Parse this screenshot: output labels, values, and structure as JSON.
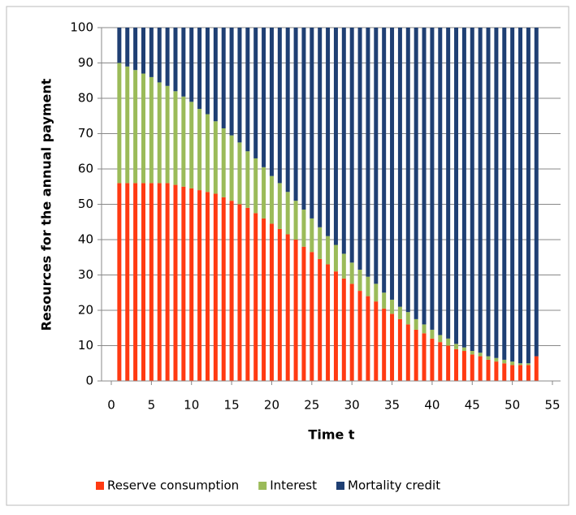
{
  "chart_data": {
    "type": "stacked_bar",
    "x_label": "Time t",
    "y_label": "Resources for the annual payment",
    "x": [
      1,
      2,
      3,
      4,
      5,
      6,
      7,
      8,
      9,
      10,
      11,
      12,
      13,
      14,
      15,
      16,
      17,
      18,
      19,
      20,
      21,
      22,
      23,
      24,
      25,
      26,
      27,
      28,
      29,
      30,
      31,
      32,
      33,
      34,
      35,
      36,
      37,
      38,
      39,
      40,
      41,
      42,
      43,
      44,
      45,
      46,
      47,
      48,
      49,
      50,
      51,
      52,
      53
    ],
    "series": [
      {
        "name": "Reserve consumption",
        "color": "#ff3a12",
        "values": [
          56,
          56,
          56,
          56,
          56,
          56,
          56,
          55.5,
          55,
          54.5,
          54,
          53.5,
          53,
          52,
          51,
          50,
          49,
          47.5,
          46,
          44.5,
          43,
          41.5,
          40,
          38,
          36.5,
          34.5,
          33,
          31,
          29,
          27.5,
          25.5,
          24,
          22.5,
          20.5,
          19,
          17.5,
          16,
          14.5,
          13.5,
          12,
          11,
          10,
          9,
          8.5,
          7.5,
          7,
          6,
          5.5,
          5,
          4.5,
          4.5,
          4.5,
          7
        ]
      },
      {
        "name": "Interest",
        "color": "#9bbb59",
        "values": [
          34,
          33,
          32,
          31,
          30,
          28.5,
          27.5,
          26.5,
          25.5,
          24.5,
          23,
          22,
          20.5,
          19.5,
          18.5,
          17.5,
          16,
          15.5,
          14.5,
          13.5,
          13,
          12,
          11,
          10.5,
          9.5,
          9,
          8,
          7.5,
          7,
          6,
          6,
          5.5,
          5,
          4.5,
          4,
          3.5,
          3.5,
          3,
          2.5,
          2.5,
          2,
          2,
          1.5,
          1,
          1,
          1,
          1,
          1,
          1,
          1,
          0.5,
          0.5,
          0
        ]
      },
      {
        "name": "Mortality credit",
        "color": "#1f3f73",
        "values": [
          10,
          11,
          12,
          13,
          14,
          15.5,
          16.5,
          18,
          19.5,
          21,
          23,
          24.5,
          26.5,
          28.5,
          30.5,
          32.5,
          35,
          37,
          39.5,
          42,
          44,
          46.5,
          49,
          51.5,
          54,
          56.5,
          59,
          61.5,
          64,
          66.5,
          68.5,
          70.5,
          72.5,
          75,
          77,
          79,
          80.5,
          82.5,
          84,
          85.5,
          87,
          88,
          89.5,
          90.5,
          91.5,
          92,
          93,
          93.5,
          94,
          94.5,
          95,
          95,
          93
        ]
      }
    ],
    "xlim": [
      0,
      55
    ],
    "xticks": [
      0,
      5,
      10,
      15,
      20,
      25,
      30,
      35,
      40,
      45,
      50,
      55
    ],
    "ylim": [
      0,
      100
    ],
    "yticks": [
      0,
      10,
      20,
      30,
      40,
      50,
      60,
      70,
      80,
      90,
      100
    ],
    "grid": true,
    "legend": "bottom"
  }
}
